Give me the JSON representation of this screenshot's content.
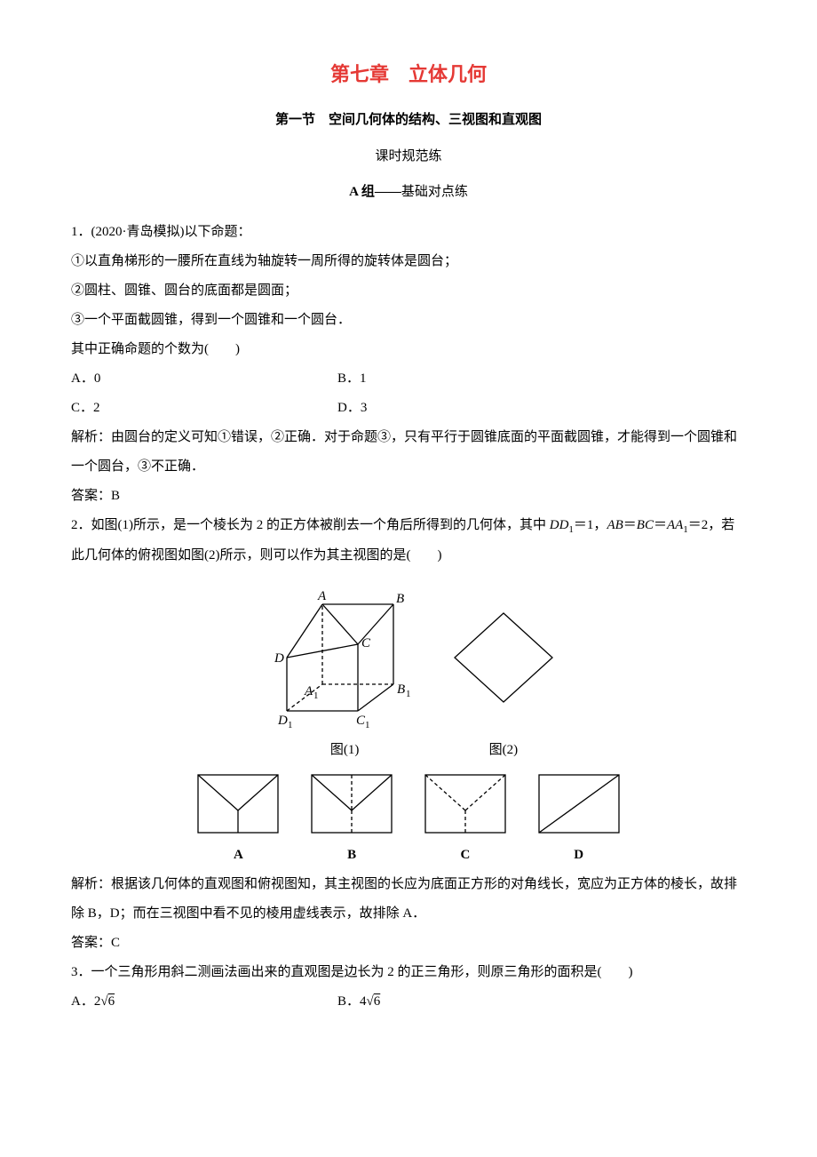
{
  "chapter_title": "第七章　立体几何",
  "section_title": "第一节　空间几何体的结构、三视图和直观图",
  "sub_title": "课时规范练",
  "group_label_prefix": "A 组——",
  "group_label_text": "基础对点练",
  "q1": {
    "stem": "1．(2020·青岛模拟)以下命题：",
    "line1": "①以直角梯形的一腰所在直线为轴旋转一周所得的旋转体是圆台；",
    "line2": "②圆柱、圆锥、圆台的底面都是圆面；",
    "line3": "③一个平面截圆锥，得到一个圆锥和一个圆台．",
    "line4": "其中正确命题的个数为(　　)",
    "optA": "A．0",
    "optB": "B．1",
    "optC": "C．2",
    "optD": "D．3",
    "explain": "解析：由圆台的定义可知①错误，②正确．对于命题③，只有平行于圆锥底面的平面截圆锥，才能得到一个圆锥和一个圆台，③不正确．",
    "answer": "答案：B"
  },
  "q2": {
    "stem1_pre": "2．如图(1)所示，是一个棱长为 2 的正方体被削去一个角后所得到的几何体，其中 ",
    "dd1": "DD",
    "dd1_sub": "1",
    "eq1": "＝1，",
    "ab": "AB",
    "eq2": "＝",
    "bc": "BC",
    "eq3": "＝",
    "aa1": "AA",
    "aa1_sub": "1",
    "eq4": "＝2，若此几何体的俯视图如图(2)所示，则可以作为其主视图的是(　　)",
    "fig1_label": "图(1)",
    "fig2_label": "图(2)",
    "optA": "A",
    "optB": "B",
    "optC": "C",
    "optD": "D",
    "explain": "解析：根据该几何体的直观图和俯视图知，其主视图的长应为底面正方形的对角线长，宽应为正方体的棱长，故排除 B，D；而在三视图中看不见的棱用虚线表示，故排除 A．",
    "answer": "答案：C"
  },
  "q3": {
    "stem": "3．一个三角形用斜二测画法画出来的直观图是边长为 2 的正三角形，则原三角形的面积是(　　)",
    "optA_pre": "A．2",
    "optA_sqrt": "√6",
    "optB_pre": "B．4",
    "optB_sqrt": "√6"
  },
  "figures": {
    "stroke": "#000000",
    "stroke_width": 1.3,
    "dash": "4,3",
    "label_font": "italic 15px 'Times New Roman'",
    "sub_font": "11px 'Times New Roman'"
  }
}
